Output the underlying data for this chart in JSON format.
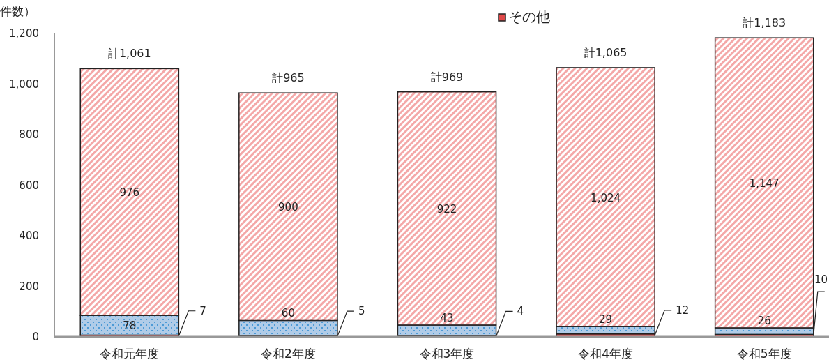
{
  "chart_data": {
    "type": "bar",
    "stacked": true,
    "ylabel": "件数）",
    "categories": [
      "令和元年度",
      "令和2年度",
      "令和3年度",
      "令和4年度",
      "令和5年度"
    ],
    "series": [
      {
        "name": "その他",
        "color": "#e04848",
        "values": [
          7,
          5,
          4,
          12,
          10
        ],
        "value_labels": [
          "7",
          "5",
          "4",
          "12",
          "10"
        ]
      },
      {
        "color": "#b0cce8",
        "values": [
          78,
          60,
          43,
          29,
          26
        ],
        "value_labels": [
          "78",
          "60",
          "43",
          "29",
          "26"
        ]
      },
      {
        "color": "#f4a8a8",
        "values": [
          976,
          900,
          922,
          1024,
          1147
        ],
        "value_labels": [
          "976",
          "900",
          "922",
          "1,024",
          "1,147"
        ]
      }
    ],
    "totals": [
      "計1,061",
      "計965",
      "計969",
      "計1,065",
      "計1,183"
    ],
    "ylim": [
      0,
      1200
    ],
    "yticks": [
      0,
      200,
      400,
      600,
      800,
      {
        "value": 1000,
        "label": "1,000"
      },
      {
        "value": 1200,
        "label": "1,200"
      }
    ],
    "grid": false,
    "legend": "top"
  }
}
